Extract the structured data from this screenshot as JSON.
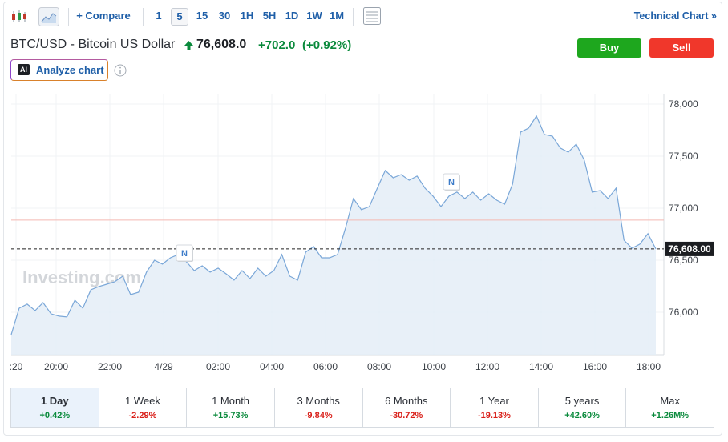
{
  "toolbar": {
    "compare": "+ Compare",
    "intervals": [
      "1",
      "5",
      "15",
      "30",
      "1H",
      "5H",
      "1D",
      "1W",
      "1M"
    ],
    "selected_interval": "5",
    "technical_chart": "Technical Chart »"
  },
  "header": {
    "instrument": "BTC/USD - Bitcoin US Dollar",
    "price": "76,608.0",
    "change": "+702.0",
    "change_percent": "(+0.92%)",
    "buy": "Buy",
    "sell": "Sell",
    "ai_badge": "AI",
    "analyze": "Analyze chart"
  },
  "chart_data": {
    "type": "area",
    "color": "#7aa7d8",
    "fill": "#e4edf7",
    "values": [
      75785,
      76038,
      76077,
      76015,
      76092,
      75985,
      75962,
      75954,
      76115,
      76038,
      76215,
      76246,
      76269,
      76292,
      76346,
      76169,
      76192,
      76385,
      76500,
      76462,
      76523,
      76554,
      76485,
      76400,
      76446,
      76385,
      76423,
      76369,
      76308,
      76400,
      76323,
      76423,
      76346,
      76400,
      76554,
      76346,
      76308,
      76577,
      76631,
      76523,
      76523,
      76554,
      76808,
      77092,
      76985,
      77015,
      77192,
      77362,
      77292,
      77323,
      77269,
      77308,
      77192,
      77115,
      77015,
      77115,
      77154,
      77092,
      77154,
      77077,
      77138,
      77077,
      77038,
      77231,
      77731,
      77769,
      77885,
      77708,
      77692,
      77577,
      77538,
      77615,
      77462,
      77154,
      77169,
      77092,
      77192,
      76692,
      76615,
      76654,
      76754,
      76608
    ],
    "ylim": [
      75592,
      78092
    ],
    "yticks": [
      {
        "value": 76000,
        "label": "76,000"
      },
      {
        "value": 76500,
        "label": "76,500"
      },
      {
        "value": 77000,
        "label": "77,000"
      },
      {
        "value": 77500,
        "label": "77,500"
      },
      {
        "value": 78000,
        "label": "78,000"
      }
    ],
    "x_labels": [
      ":20",
      "20:00",
      "22:00",
      "4/29",
      "02:00",
      "04:00",
      "06:00",
      "08:00",
      "10:00",
      "12:00",
      "14:00",
      "16:00",
      "18:00"
    ],
    "last_value": {
      "value": 76608,
      "label": "76,608.00"
    },
    "reference_line": 76885,
    "reference_color": "#f4b9b2",
    "annotations": [
      "N",
      "N"
    ],
    "watermark": "Investing.com",
    "grid": true
  },
  "periods": [
    {
      "label": "1 Day",
      "change": "+0.42%"
    },
    {
      "label": "1 Week",
      "change": "-2.29%"
    },
    {
      "label": "1 Month",
      "change": "+15.73%"
    },
    {
      "label": "3 Months",
      "change": "-9.84%"
    },
    {
      "label": "6 Months",
      "change": "-30.72%"
    },
    {
      "label": "1 Year",
      "change": "-19.13%"
    },
    {
      "label": "5 years",
      "change": "+42.60%"
    },
    {
      "label": "Max",
      "change": "+1.26M%"
    }
  ],
  "selected_period": "1 Day"
}
